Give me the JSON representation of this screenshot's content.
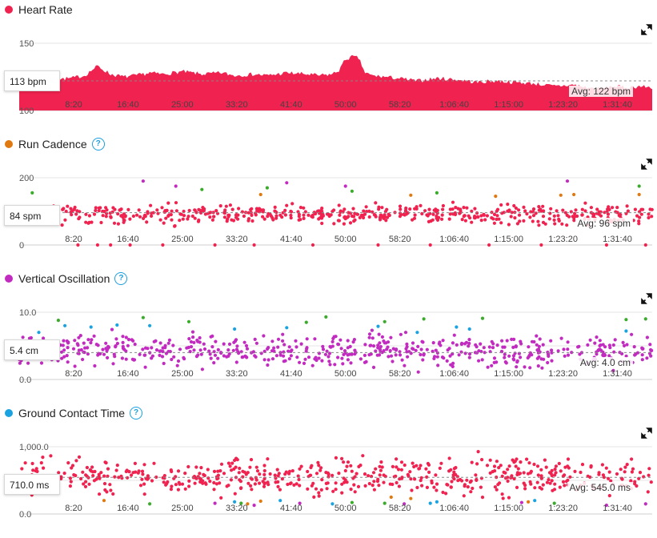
{
  "colors": {
    "red": "#f0224f",
    "orange": "#e07a10",
    "green": "#3aab2b",
    "blue": "#1aa3e0",
    "purple": "#c22bc0",
    "grid": "#e6e6e6",
    "avg_line": "#888888"
  },
  "x_ticks": [
    "8:20",
    "16:40",
    "25:00",
    "33:20",
    "41:40",
    "50:00",
    "58:20",
    "1:06:40",
    "1:15:00",
    "1:23:20",
    "1:31:40"
  ],
  "chart_data": [
    {
      "type": "area",
      "title": "Heart Rate",
      "help": false,
      "ylim": [
        100,
        150
      ],
      "y_ticks": [
        "150",
        "100"
      ],
      "x_ticks": [
        "8:20",
        "16:40",
        "25:00",
        "33:20",
        "41:40",
        "50:00",
        "58:20",
        "1:06:40",
        "1:15:00",
        "1:23:20",
        "1:31:40"
      ],
      "current_label": "113 bpm",
      "avg_label": "Avg: 122 bpm",
      "avg": 122,
      "x_minutes": [
        0,
        3,
        5,
        8,
        10,
        12,
        14,
        16,
        18,
        20,
        22,
        25,
        28,
        31,
        33,
        36,
        38,
        41,
        44,
        46,
        48,
        49,
        50,
        51,
        52,
        53,
        54,
        56,
        58,
        61,
        64,
        67,
        70,
        73,
        76,
        79,
        82,
        85,
        87,
        89,
        91,
        93,
        95,
        97
      ],
      "values": [
        123,
        124,
        123,
        124,
        126,
        133,
        127,
        125,
        126,
        128,
        127,
        129,
        127,
        128,
        126,
        127,
        126,
        128,
        127,
        126,
        127,
        130,
        138,
        140,
        139,
        128,
        126,
        125,
        124,
        122,
        124,
        123,
        121,
        122,
        121,
        120,
        118,
        119,
        117,
        116,
        118,
        117,
        118,
        117
      ]
    },
    {
      "type": "scatter",
      "title": "Run Cadence",
      "help": true,
      "ylim": [
        0,
        200
      ],
      "y_ticks": [
        "200",
        "0"
      ],
      "x_ticks": [
        "8:20",
        "16:40",
        "25:00",
        "33:20",
        "41:40",
        "50:00",
        "58:20",
        "1:06:40",
        "1:15:00",
        "1:23:20",
        "1:31:40"
      ],
      "current_label": "84 spm",
      "avg_label": "Avg: 96 spm",
      "avg": 96,
      "main_band": {
        "center": 92,
        "spread": 14,
        "count": 560
      },
      "extra_points": [
        {
          "color": "green",
          "values": [
            [
              2,
              155
            ],
            [
              28,
              165
            ],
            [
              38,
              170
            ],
            [
              51,
              160
            ],
            [
              64,
              155
            ],
            [
              95,
              175
            ]
          ]
        },
        {
          "color": "orange",
          "values": [
            [
              37,
              150
            ],
            [
              60,
              148
            ],
            [
              73,
              145
            ],
            [
              83,
              148
            ],
            [
              85,
              150
            ],
            [
              95,
              150
            ]
          ]
        },
        {
          "color": "purple",
          "values": [
            [
              19,
              190
            ],
            [
              24,
              175
            ],
            [
              41,
              185
            ],
            [
              50,
              175
            ],
            [
              84,
              190
            ]
          ]
        },
        {
          "color": "red",
          "values": [
            [
              9,
              0
            ],
            [
              12,
              0
            ],
            [
              14,
              0
            ],
            [
              17,
              0
            ],
            [
              22,
              0
            ],
            [
              30,
              0
            ],
            [
              36,
              0
            ],
            [
              45,
              0
            ],
            [
              55,
              0
            ],
            [
              63,
              0
            ],
            [
              72,
              0
            ],
            [
              80,
              0
            ],
            [
              90,
              0
            ],
            [
              96,
              0
            ]
          ]
        }
      ]
    },
    {
      "type": "scatter",
      "title": "Vertical Oscillation",
      "help": true,
      "ylim": [
        0,
        10
      ],
      "y_ticks": [
        "10.0",
        "5.0",
        "0.0"
      ],
      "x_ticks": [
        "8:20",
        "16:40",
        "25:00",
        "33:20",
        "41:40",
        "50:00",
        "58:20",
        "1:06:40",
        "1:15:00",
        "1:23:20",
        "1:31:40"
      ],
      "current_label": "5.4 cm",
      "avg_label": "Avg: 4.0 cm",
      "avg": 4.0,
      "main_band": {
        "center": 4.2,
        "spread": 1.2,
        "count": 560
      },
      "extra_points": [
        {
          "color": "blue",
          "values": [
            [
              3,
              7.0
            ],
            [
              7,
              8.0
            ],
            [
              11,
              7.8
            ],
            [
              15,
              8.1
            ],
            [
              20,
              8.0
            ],
            [
              33,
              7.5
            ],
            [
              41,
              7.7
            ],
            [
              55,
              7.9
            ],
            [
              61,
              7.0
            ],
            [
              67,
              7.8
            ],
            [
              69,
              7.5
            ],
            [
              93,
              7.2
            ]
          ]
        },
        {
          "color": "green",
          "values": [
            [
              6,
              8.8
            ],
            [
              19,
              9.2
            ],
            [
              26,
              8.6
            ],
            [
              44,
              8.5
            ],
            [
              47,
              9.3
            ],
            [
              56,
              8.6
            ],
            [
              62,
              9.0
            ],
            [
              71,
              9.1
            ],
            [
              93,
              8.9
            ],
            [
              96,
              9.0
            ]
          ]
        }
      ]
    },
    {
      "type": "scatter",
      "title": "Ground Contact Time",
      "help": true,
      "ylim": [
        0,
        1000
      ],
      "y_ticks": [
        "1,000.0",
        "500.0",
        "0.0"
      ],
      "x_ticks": [
        "8:20",
        "16:40",
        "25:00",
        "33:20",
        "41:40",
        "50:00",
        "58:20",
        "1:06:40",
        "1:15:00",
        "1:23:20",
        "1:31:40"
      ],
      "current_label": "710.0 ms",
      "avg_label": "Avg: 545.0 ms",
      "avg": 545,
      "main_band": {
        "center": 560,
        "spread": 130,
        "count": 560
      },
      "extra_points": [
        {
          "color": "orange",
          "values": [
            [
              13,
              200
            ],
            [
              35,
              150
            ],
            [
              37,
              190
            ],
            [
              57,
              250
            ],
            [
              60,
              230
            ],
            [
              78,
              180
            ]
          ]
        },
        {
          "color": "green",
          "values": [
            [
              20,
              150
            ],
            [
              34,
              160
            ],
            [
              51,
              170
            ],
            [
              56,
              160
            ],
            [
              82,
              160
            ]
          ]
        },
        {
          "color": "blue",
          "values": [
            [
              33,
              180
            ],
            [
              40,
              200
            ],
            [
              48,
              150
            ],
            [
              63,
              160
            ],
            [
              64,
              180
            ],
            [
              79,
              200
            ]
          ]
        },
        {
          "color": "purple",
          "values": [
            [
              30,
              160
            ],
            [
              36,
              130
            ],
            [
              43,
              160
            ],
            [
              59,
              150
            ],
            [
              77,
              170
            ],
            [
              90,
              130
            ],
            [
              96,
              150
            ]
          ]
        }
      ]
    }
  ]
}
